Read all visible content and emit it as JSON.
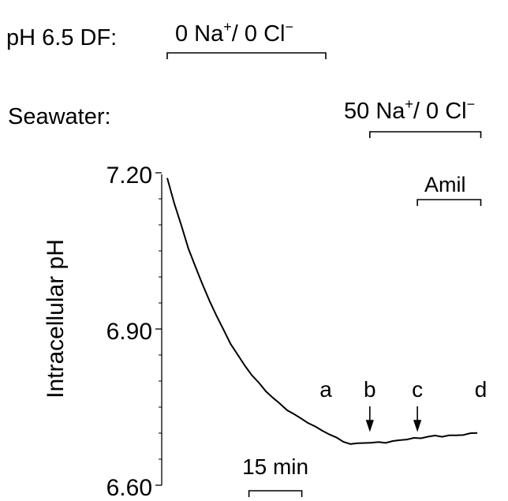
{
  "conditions": {
    "df_label": "pH 6.5 DF:",
    "seawater_label": "Seawater:",
    "df_bar": {
      "prefix": "0 Na",
      "sup1": "+",
      "mid": "/ 0 Cl",
      "sup2": "−"
    },
    "sea_bar": {
      "prefix": "50 Na",
      "sup1": "+",
      "mid": "/  0 Cl",
      "sup2": "−"
    },
    "amil_label": "Amil"
  },
  "chart_data": {
    "type": "line",
    "ylabel": "Intracellular pH",
    "ylim": [
      6.6,
      7.2
    ],
    "yticks": [
      "7.20",
      "6.90",
      "6.60"
    ],
    "minor_ticks": [
      6.65,
      6.7,
      6.75,
      6.8,
      6.85,
      6.95,
      7.0,
      7.05,
      7.1,
      7.15
    ],
    "xlim_min": [
      0,
      90
    ],
    "scale_bar": {
      "label": "15 min",
      "duration_min": 15,
      "start_min": 12
    },
    "series": [
      {
        "x_min": [
          0,
          2,
          4,
          6,
          8,
          10,
          12,
          14,
          16,
          18,
          20,
          22,
          24,
          26,
          28,
          30,
          32,
          34,
          36,
          38,
          40,
          42,
          44,
          46,
          48,
          50,
          52,
          54,
          56,
          58,
          60,
          62,
          64,
          66,
          68,
          70,
          72,
          74,
          76,
          78,
          80,
          82,
          84,
          86,
          88
        ],
        "values": [
          7.19,
          7.142,
          7.098,
          7.055,
          7.02,
          6.985,
          6.955,
          6.925,
          6.898,
          6.872,
          6.85,
          6.83,
          6.812,
          6.796,
          6.781,
          6.768,
          6.756,
          6.745,
          6.736,
          6.728,
          6.72,
          6.712,
          6.705,
          6.698,
          6.691,
          6.684,
          6.679,
          6.68,
          6.682,
          6.681,
          6.683,
          6.682,
          6.684,
          6.687,
          6.688,
          6.69,
          6.691,
          6.693,
          6.695,
          6.694,
          6.695,
          6.696,
          6.697,
          6.699,
          6.701
        ]
      }
    ],
    "periods": [
      {
        "name": "df",
        "start": 0,
        "end": 45
      },
      {
        "name": "seawater",
        "start": 57.5,
        "end": 89
      },
      {
        "name": "amil",
        "start": 71,
        "end": 89
      }
    ],
    "markers": [
      {
        "label": "a",
        "x": 45,
        "arrow": false
      },
      {
        "label": "b",
        "x": 57.5,
        "arrow": true
      },
      {
        "label": "c",
        "x": 71,
        "arrow": true
      },
      {
        "label": "d",
        "x": 89,
        "arrow": false
      }
    ]
  }
}
